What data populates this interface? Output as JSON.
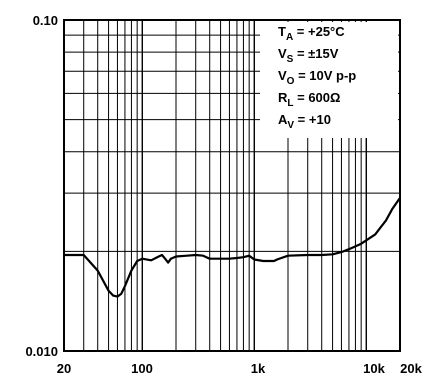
{
  "chart_data": {
    "type": "line",
    "x_scale": "log",
    "y_scale": "log",
    "xlim": [
      20,
      20000
    ],
    "ylim": [
      0.01,
      0.1
    ],
    "grid": true,
    "x_ticks": [
      {
        "value": 20,
        "label": "20"
      },
      {
        "value": 100,
        "label": "100"
      },
      {
        "value": 1000,
        "label": "1k"
      },
      {
        "value": 10000,
        "label": "10k"
      },
      {
        "value": 20000,
        "label": "20k"
      }
    ],
    "y_ticks": [
      {
        "value": 0.1,
        "label": "0.10"
      },
      {
        "value": 0.01,
        "label": "0.010"
      }
    ],
    "conditions": [
      {
        "main": "T",
        "sub": "A",
        "value": " = +25°C"
      },
      {
        "main": "V",
        "sub": "S",
        "value": " = ±15V"
      },
      {
        "main": "V",
        "sub": "O",
        "value": " = 10V p-p"
      },
      {
        "main": "R",
        "sub": "L",
        "value": " = 600Ω"
      },
      {
        "main": "A",
        "sub": "V",
        "value": " = +10"
      }
    ],
    "series": [
      {
        "x": [
          20,
          30,
          40,
          50,
          55,
          60,
          65,
          70,
          80,
          90,
          100,
          120,
          140,
          150,
          160,
          170,
          180,
          200,
          250,
          300,
          350,
          400,
          500,
          600,
          700,
          800,
          900,
          1000,
          1200,
          1500,
          1600,
          2000,
          3000,
          4000,
          5000,
          6000,
          7000,
          8000,
          9000,
          10000,
          12000,
          15000,
          17000,
          20000
        ],
        "y": [
          0.0195,
          0.0195,
          0.0175,
          0.0152,
          0.0147,
          0.0146,
          0.0149,
          0.0157,
          0.0175,
          0.0187,
          0.019,
          0.0188,
          0.0193,
          0.0195,
          0.019,
          0.0185,
          0.019,
          0.0193,
          0.0194,
          0.0195,
          0.0194,
          0.019,
          0.019,
          0.019,
          0.0191,
          0.0192,
          0.0194,
          0.0189,
          0.0187,
          0.0187,
          0.0189,
          0.0194,
          0.0195,
          0.0195,
          0.0196,
          0.0199,
          0.0203,
          0.0207,
          0.0211,
          0.0216,
          0.0225,
          0.0248,
          0.0268,
          0.029
        ]
      }
    ]
  }
}
